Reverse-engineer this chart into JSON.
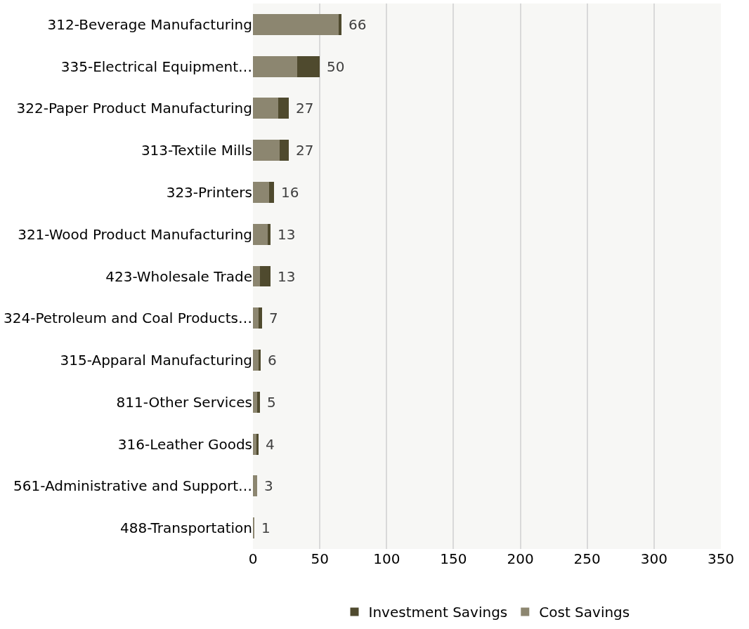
{
  "chart_data": {
    "type": "bar",
    "orientation": "horizontal",
    "stacked": true,
    "categories": [
      "312-Beverage Manufacturing",
      "335-Electrical Equipment…",
      "322-Paper Product Manufacturing",
      "313-Textile Mills",
      "323-Printers",
      "321-Wood Product Manufacturing",
      "423-Wholesale Trade",
      "324-Petroleum and Coal Products…",
      "315-Apparal Manufacturing",
      "811-Other Services",
      "316-Leather Goods",
      "561-Administrative and Support…",
      "488-Transportation"
    ],
    "series": [
      {
        "name": "Cost Savings",
        "color": "#8c8670",
        "values": [
          64,
          33,
          19,
          20,
          12,
          11,
          5,
          4,
          4,
          3,
          3,
          3,
          1
        ]
      },
      {
        "name": "Investment Savings",
        "color": "#4f4a2e",
        "values": [
          2,
          17,
          8,
          7,
          4,
          2,
          8,
          3,
          2,
          2,
          1,
          0,
          0
        ]
      }
    ],
    "totals": [
      "66",
      "50",
      "27",
      "27",
      "16",
      "13",
      "13",
      "7",
      "6",
      "5",
      "4",
      "3",
      "1"
    ],
    "xlim": [
      0,
      350
    ],
    "xticks": [
      0,
      50,
      100,
      150,
      200,
      250,
      300,
      350
    ],
    "grid": "x",
    "legend": "bottom"
  }
}
